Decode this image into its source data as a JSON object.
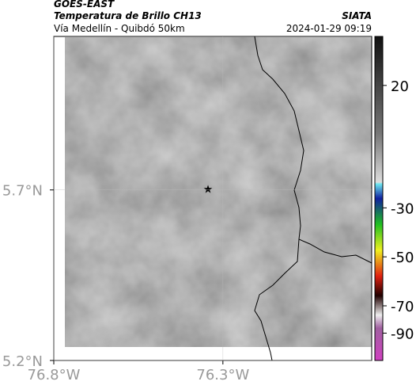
{
  "header": {
    "source": "GOES-EAST",
    "title": "Temperatura de Brillo CH13",
    "subtitle": "Vía Medellín - Quibdó 50km",
    "credit": "SIATA",
    "timestamp": "2024-01-29 09:19"
  },
  "map": {
    "xlim": [
      -76.8,
      -75.86
    ],
    "ylim": [
      5.2,
      6.15
    ],
    "xticks": [
      {
        "value": -76.8,
        "label": "76.8°W"
      },
      {
        "value": -76.3,
        "label": "76.3°W"
      }
    ],
    "yticks": [
      {
        "value": 5.2,
        "label": "5.2°N"
      },
      {
        "value": 5.7,
        "label": "5.7°N"
      }
    ],
    "marker": {
      "lon": -76.344,
      "lat": 5.7
    }
  },
  "colorbar": {
    "lim": [
      -110,
      40
    ],
    "ticks": [
      20,
      -30,
      -50,
      -70,
      -90
    ]
  }
}
